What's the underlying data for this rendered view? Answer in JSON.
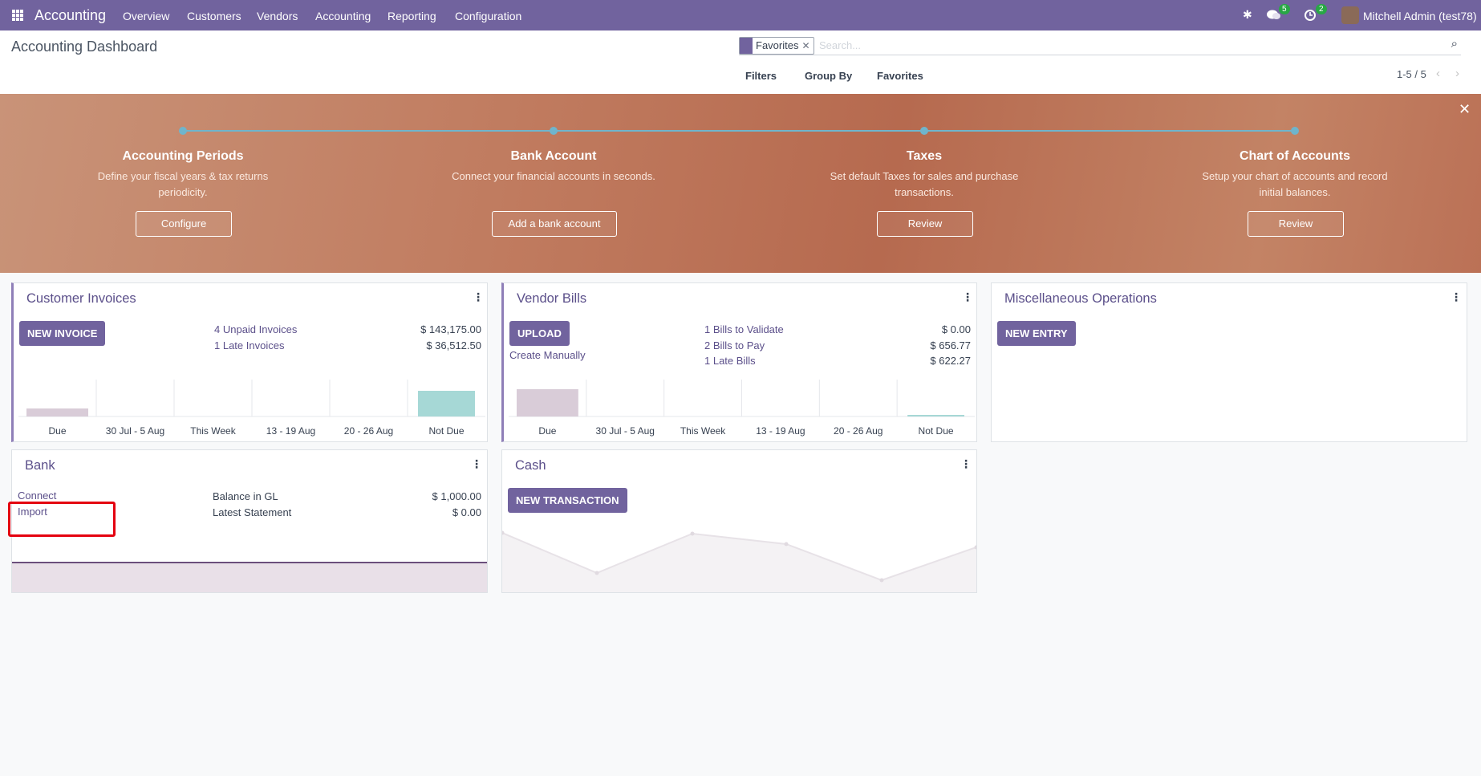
{
  "navbar": {
    "app": "Accounting",
    "menu": [
      "Overview",
      "Customers",
      "Vendors",
      "Accounting",
      "Reporting",
      "Configuration"
    ],
    "messages_badge": 5,
    "activities_badge": 2,
    "user": "Mitchell Admin (test78)"
  },
  "control_panel": {
    "title": "Accounting Dashboard",
    "facet": "Favorites",
    "search_placeholder": "Search...",
    "filters": "Filters",
    "group_by": "Group By",
    "favorites": "Favorites",
    "pager": "1-5 / 5"
  },
  "onboarding": {
    "steps": [
      {
        "title": "Accounting Periods",
        "description": "Define your fiscal years & tax returns periodicity.",
        "button": "Configure"
      },
      {
        "title": "Bank Account",
        "description": "Connect your financial accounts in seconds.",
        "button": "Add a bank account"
      },
      {
        "title": "Taxes",
        "description": "Set default Taxes for sales and purchase transactions.",
        "button": "Review"
      },
      {
        "title": "Chart of Accounts",
        "description": "Setup your chart of accounts and record initial balances.",
        "button": "Review"
      }
    ]
  },
  "journals": [
    {
      "name": "Customer Invoices",
      "button": "NEW INVOICE",
      "stats": [
        {
          "label": "4 Unpaid Invoices",
          "amount": "$ 143,175.00"
        },
        {
          "label": "1 Late Invoices",
          "amount": "$ 36,512.50"
        }
      ],
      "graph_labels": [
        "Due",
        "30 Jul - 5 Aug",
        "This Week",
        "13 - 19 Aug",
        "20 - 26 Aug",
        "Not Due"
      ]
    },
    {
      "name": "Vendor Bills",
      "button": "UPLOAD",
      "links": [
        "Create Manually"
      ],
      "stats": [
        {
          "label": "1 Bills to Validate",
          "amount": "$ 0.00"
        },
        {
          "label": "2 Bills to Pay",
          "amount": "$ 656.77"
        },
        {
          "label": "1 Late Bills",
          "amount": "$ 622.27"
        }
      ],
      "graph_labels": [
        "Due",
        "30 Jul - 5 Aug",
        "This Week",
        "13 - 19 Aug",
        "20 - 26 Aug",
        "Not Due"
      ]
    },
    {
      "name": "Miscellaneous Operations",
      "button": "NEW ENTRY"
    },
    {
      "name": "Bank",
      "links": [
        "Connect",
        "Import"
      ],
      "stats": [
        {
          "label": "Balance in GL",
          "amount": "$ 1,000.00"
        },
        {
          "label": "Latest Statement",
          "amount": "$ 0.00"
        }
      ]
    },
    {
      "name": "Cash",
      "button": "NEW TRANSACTION"
    }
  ]
}
